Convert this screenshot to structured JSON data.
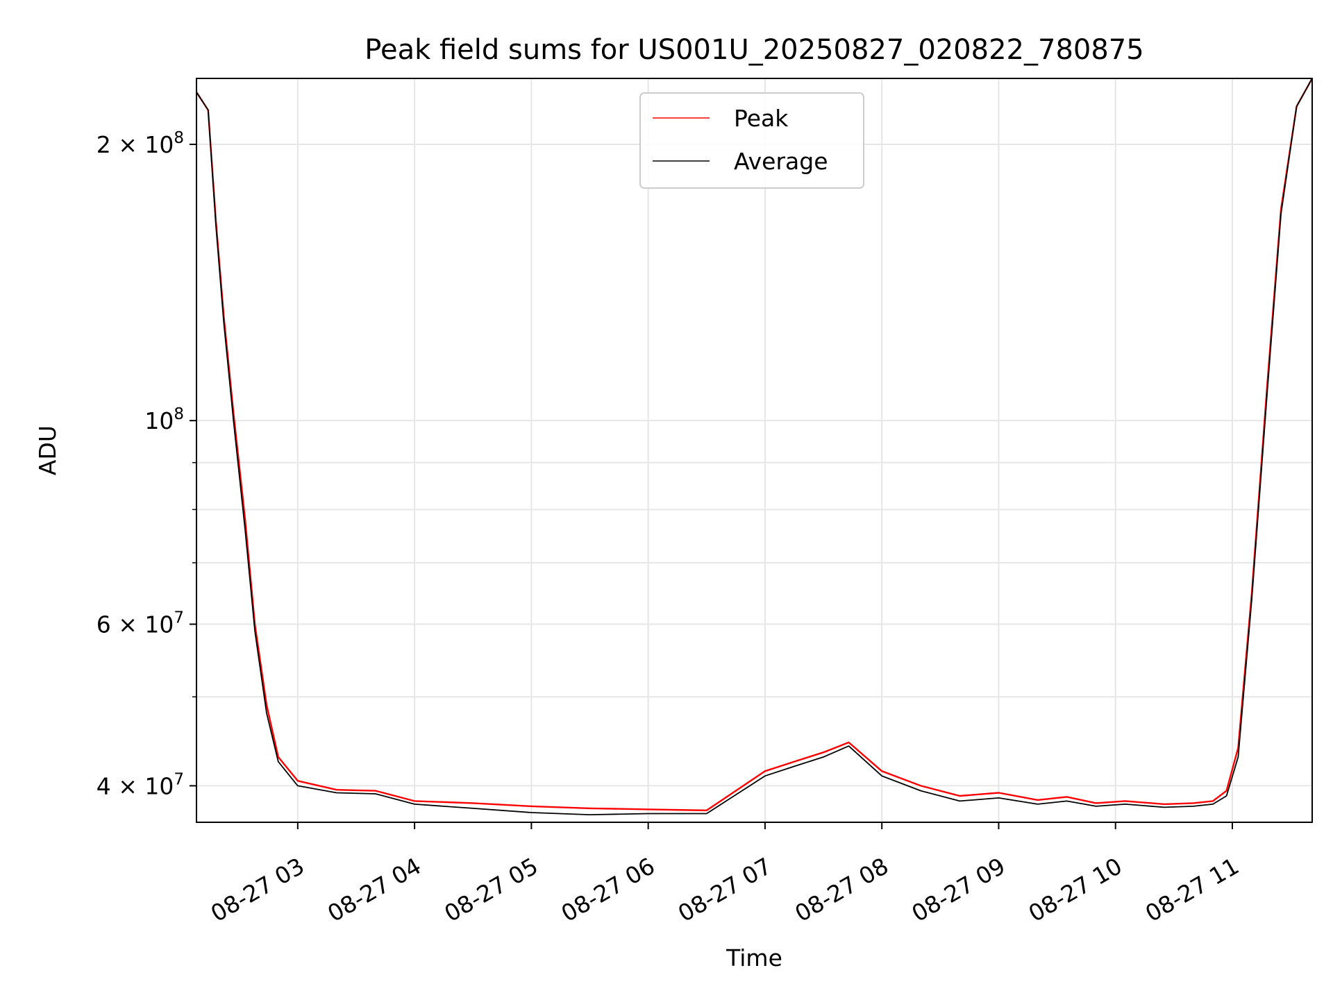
{
  "chart_data": {
    "type": "line",
    "title": "Peak field sums for US001U_20250827_020822_780875",
    "xlabel": "Time",
    "ylabel": "ADU",
    "yscale": "log",
    "ylim": [
      36500000,
      236000000
    ],
    "xlim": [
      "08-27 02:08",
      "08-27 11:41"
    ],
    "grid": true,
    "legend_position": "top-center",
    "x_ticks": [
      {
        "value": "08-27 03:00",
        "label": "08-27 03"
      },
      {
        "value": "08-27 04:00",
        "label": "08-27 04"
      },
      {
        "value": "08-27 05:00",
        "label": "08-27 05"
      },
      {
        "value": "08-27 06:00",
        "label": "08-27 06"
      },
      {
        "value": "08-27 07:00",
        "label": "08-27 07"
      },
      {
        "value": "08-27 08:00",
        "label": "08-27 08"
      },
      {
        "value": "08-27 09:00",
        "label": "08-27 09"
      },
      {
        "value": "08-27 10:00",
        "label": "08-27 10"
      },
      {
        "value": "08-27 11:00",
        "label": "08-27 11"
      }
    ],
    "y_ticks": [
      {
        "value": 40000000,
        "label": "4 × 10",
        "exp": "7"
      },
      {
        "value": 60000000,
        "label": "6 × 10",
        "exp": "7"
      },
      {
        "value": 100000000,
        "label": "10",
        "exp": "8"
      },
      {
        "value": 200000000,
        "label": "2 × 10",
        "exp": "8"
      }
    ],
    "y_minor": [
      50000000,
      70000000,
      80000000,
      90000000
    ],
    "series": [
      {
        "name": "Peak",
        "color": "#ff0000",
        "x": [
          "08-27 02:08",
          "08-27 02:14",
          "08-27 02:18",
          "08-27 02:22",
          "08-27 02:27",
          "08-27 02:33",
          "08-27 02:38",
          "08-27 02:44",
          "08-27 02:50",
          "08-27 03:00",
          "08-27 03:20",
          "08-27 03:40",
          "08-27 04:00",
          "08-27 04:30",
          "08-27 05:00",
          "08-27 05:30",
          "08-27 06:00",
          "08-27 06:30",
          "08-27 07:00",
          "08-27 07:15",
          "08-27 07:30",
          "08-27 07:43",
          "08-27 08:00",
          "08-27 08:20",
          "08-27 08:40",
          "08-27 09:00",
          "08-27 09:20",
          "08-27 09:35",
          "08-27 09:50",
          "08-27 10:05",
          "08-27 10:25",
          "08-27 10:40",
          "08-27 10:50",
          "08-27 10:57",
          "08-27 11:03",
          "08-27 11:10",
          "08-27 11:18",
          "08-27 11:25",
          "08-27 11:33",
          "08-27 11:41"
        ],
        "y": [
          228000000,
          218000000,
          165000000,
          130000000,
          102000000,
          78000000,
          60000000,
          49000000,
          43000000,
          40500000,
          39600000,
          39500000,
          38500000,
          38300000,
          38000000,
          37800000,
          37700000,
          37600000,
          41500000,
          42500000,
          43500000,
          44600000,
          41500000,
          40000000,
          39000000,
          39300000,
          38600000,
          38900000,
          38300000,
          38500000,
          38200000,
          38300000,
          38500000,
          39500000,
          44000000,
          65000000,
          110000000,
          170000000,
          220000000,
          236000000
        ]
      },
      {
        "name": "Average",
        "color": "#000000",
        "x": [
          "08-27 02:08",
          "08-27 02:14",
          "08-27 02:18",
          "08-27 02:22",
          "08-27 02:27",
          "08-27 02:33",
          "08-27 02:38",
          "08-27 02:44",
          "08-27 02:50",
          "08-27 03:00",
          "08-27 03:20",
          "08-27 03:40",
          "08-27 04:00",
          "08-27 04:30",
          "08-27 05:00",
          "08-27 05:30",
          "08-27 06:00",
          "08-27 06:30",
          "08-27 07:00",
          "08-27 07:15",
          "08-27 07:30",
          "08-27 07:43",
          "08-27 08:00",
          "08-27 08:20",
          "08-27 08:40",
          "08-27 09:00",
          "08-27 09:20",
          "08-27 09:35",
          "08-27 09:50",
          "08-27 10:05",
          "08-27 10:25",
          "08-27 10:40",
          "08-27 10:50",
          "08-27 10:57",
          "08-27 11:03",
          "08-27 11:10",
          "08-27 11:18",
          "08-27 11:25",
          "08-27 11:33",
          "08-27 11:41"
        ],
        "y": [
          228000000,
          218000000,
          163000000,
          128000000,
          100000000,
          76000000,
          59000000,
          48000000,
          42500000,
          40000000,
          39300000,
          39200000,
          38200000,
          37800000,
          37400000,
          37200000,
          37300000,
          37300000,
          41000000,
          42000000,
          43000000,
          44200000,
          41000000,
          39500000,
          38500000,
          38800000,
          38200000,
          38500000,
          38000000,
          38200000,
          37900000,
          38000000,
          38200000,
          39000000,
          43000000,
          64000000,
          108000000,
          168000000,
          220000000,
          236000000
        ]
      }
    ]
  }
}
